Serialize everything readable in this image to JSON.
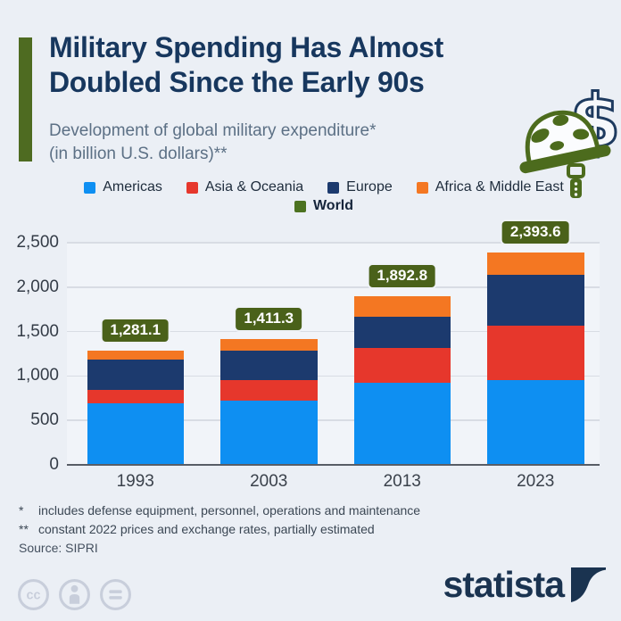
{
  "header": {
    "title_line1": "Military Spending Has Almost",
    "title_line2": "Doubled Since the Early 90s",
    "subtitle_line1": "Development of global military expenditure*",
    "subtitle_line2": "(in billion U.S. dollars)**",
    "accent_color": "#4e6b21",
    "hero_icon": "dollar-sign-with-military-helmet"
  },
  "chart_data": {
    "type": "bar",
    "stacked": true,
    "categories": [
      "1993",
      "2003",
      "2013",
      "2023"
    ],
    "series": [
      {
        "name": "Americas",
        "color": "#0e8ff2",
        "values": [
          690,
          720,
          920,
          955
        ]
      },
      {
        "name": "Asia & Oceania",
        "color": "#e6372c",
        "values": [
          155,
          235,
          400,
          615
        ]
      },
      {
        "name": "Europe",
        "color": "#1c3a6e",
        "values": [
          340,
          330,
          345,
          570
        ]
      },
      {
        "name": "Africa & Middle East",
        "color": "#f47722",
        "values": [
          96.1,
          126.3,
          227.8,
          253.6
        ]
      }
    ],
    "totals": [
      1281.1,
      1411.3,
      1892.8,
      2393.6
    ],
    "total_series_name": "World",
    "world_swatch_color": "#4c7220",
    "total_badge_color": "#4a611a",
    "y_ticks": [
      0,
      500,
      1000,
      1500,
      2000,
      2500
    ],
    "ylim": [
      0,
      2500
    ],
    "grid": true,
    "legend_position": "top",
    "title": "Development of global military expenditure (in billion U.S. dollars)"
  },
  "footnotes": [
    {
      "mark": "*",
      "text": "includes defense equipment, personnel, operations and maintenance"
    },
    {
      "mark": "**",
      "text": "constant 2022 prices and exchange rates, partially estimated"
    }
  ],
  "source": "Source: SIPRI",
  "branding": {
    "logo_text": "statista",
    "cc_icons": [
      "cc-license-icon",
      "attribution-person-icon",
      "equal-sign-icon"
    ]
  }
}
